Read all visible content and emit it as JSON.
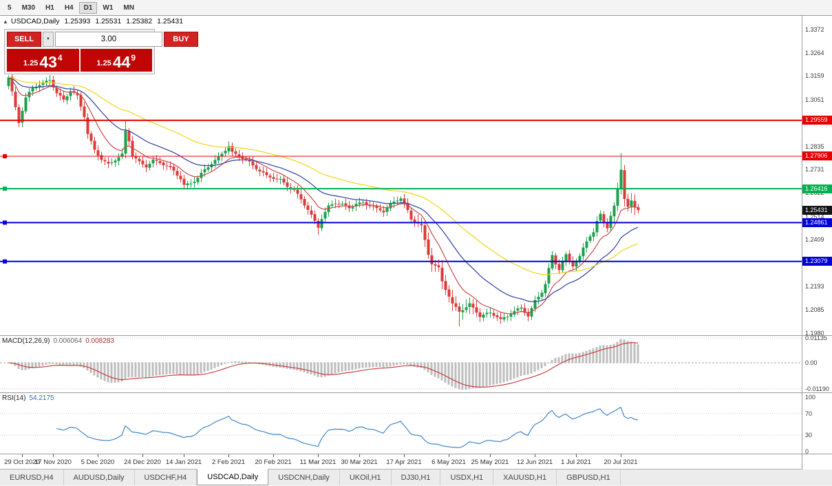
{
  "toolbar": {
    "periods": [
      {
        "label": "5",
        "active": false
      },
      {
        "label": "M30",
        "active": false
      },
      {
        "label": "H1",
        "active": false
      },
      {
        "label": "H4",
        "active": false
      },
      {
        "label": "D1",
        "active": true
      },
      {
        "label": "W1",
        "active": false
      },
      {
        "label": "MN",
        "active": false
      }
    ]
  },
  "chart": {
    "header": {
      "collapse_icon": "▲",
      "title": "USDCAD,Daily",
      "open": "1.25393",
      "high": "1.25531",
      "low": "1.25382",
      "close": "1.25431"
    },
    "trade_panel": {
      "sell_label": "SELL",
      "buy_label": "BUY",
      "volume": "3.00",
      "dropdown_icon": "▼",
      "sell_price": {
        "prefix": "1.25",
        "big": "43",
        "sup": "4"
      },
      "buy_price": {
        "prefix": "1.25",
        "big": "44",
        "sup": "9"
      }
    },
    "price_axis_ticks": [
      "1.3372",
      "1.3264",
      "1.3159",
      "1.3051",
      "1.2946",
      "1.2835",
      "1.2731",
      "1.2622",
      "1.2514",
      "1.2409",
      "1.2301",
      "1.2193",
      "1.2085",
      "1.1980"
    ],
    "hlines": [
      {
        "price": 1.29559,
        "label": "1.29559",
        "color": "#e60000",
        "width": 2,
        "marker": false
      },
      {
        "price": 1.27906,
        "label": "1.27906",
        "color": "#e60000",
        "width": 1,
        "marker": true
      },
      {
        "price": 1.26416,
        "label": "1.26416",
        "color": "#00b050",
        "width": 2,
        "marker": true
      },
      {
        "price": 1.24861,
        "label": "1.24861",
        "color": "#0000d8",
        "width": 2,
        "marker": true
      },
      {
        "price": 1.23079,
        "label": "1.23079",
        "color": "#0000d8",
        "width": 2,
        "marker": true
      }
    ],
    "current_price_badge": {
      "label": "1.25431",
      "price": 1.25431,
      "bg": "#141414"
    },
    "indicators": {
      "macd": {
        "name": "MACD(12,26,9)",
        "main_value": "0.006064",
        "signal_value": "0.008283",
        "ticks": [
          {
            "label": "0.01135",
            "value": 0.01135
          },
          {
            "label": "0.00",
            "value": 0
          },
          {
            "label": "-0.01190",
            "value": -0.0119
          }
        ]
      },
      "rsi": {
        "name": "RSI(14)",
        "value": "54.2175",
        "ticks": [
          {
            "label": "100",
            "value": 100
          },
          {
            "label": "70",
            "value": 70
          },
          {
            "label": "30",
            "value": 30
          },
          {
            "label": "0",
            "value": 0
          }
        ],
        "levels": [
          70,
          30
        ]
      }
    }
  },
  "chart_data": {
    "type": "candlestick",
    "symbol": "USDCAD",
    "timeframe": "Daily",
    "title": "USDCAD,Daily",
    "ohlc_header": {
      "open": 1.25393,
      "high": 1.25531,
      "low": 1.25382,
      "close": 1.25431
    },
    "bid": 1.25434,
    "ask": 1.25449,
    "bars": 184,
    "price_axis": {
      "min": 1.1969,
      "max": 1.34352
    },
    "x_labels": [
      {
        "label": "29 Oct 2020",
        "bar": 4
      },
      {
        "label": "17 Nov 2020",
        "bar": 13
      },
      {
        "label": "5 Dec 2020",
        "bar": 26
      },
      {
        "label": "24 Dec 2020",
        "bar": 39
      },
      {
        "label": "14 Jan 2021",
        "bar": 51
      },
      {
        "label": "2 Feb 2021",
        "bar": 64
      },
      {
        "label": "20 Feb 2021",
        "bar": 77
      },
      {
        "label": "11 Mar 2021",
        "bar": 90
      },
      {
        "label": "30 Mar 2021",
        "bar": 102
      },
      {
        "label": "17 Apr 2021",
        "bar": 115
      },
      {
        "label": "6 May 2021",
        "bar": 128
      },
      {
        "label": "25 May 2021",
        "bar": 140
      },
      {
        "label": "12 Jun 2021",
        "bar": 153
      },
      {
        "label": "1 Jul 2021",
        "bar": 165
      },
      {
        "label": "20 Jul 2021",
        "bar": 178
      }
    ],
    "close_anchors": [
      [
        0,
        1.315
      ],
      [
        2,
        1.301
      ],
      [
        3,
        1.2945
      ],
      [
        5,
        1.306
      ],
      [
        7,
        1.311
      ],
      [
        10,
        1.3125
      ],
      [
        12,
        1.314
      ],
      [
        14,
        1.3075
      ],
      [
        16,
        1.305
      ],
      [
        18,
        1.3095
      ],
      [
        20,
        1.307
      ],
      [
        22,
        1.2975
      ],
      [
        23,
        1.289
      ],
      [
        25,
        1.2815
      ],
      [
        27,
        1.2775
      ],
      [
        29,
        1.2755
      ],
      [
        31,
        1.278
      ],
      [
        33,
        1.28
      ],
      [
        34,
        1.2905
      ],
      [
        35,
        1.286
      ],
      [
        36,
        1.279
      ],
      [
        38,
        1.276
      ],
      [
        40,
        1.2745
      ],
      [
        42,
        1.2775
      ],
      [
        44,
        1.2765
      ],
      [
        46,
        1.2745
      ],
      [
        48,
        1.272
      ],
      [
        50,
        1.2685
      ],
      [
        51,
        1.2655
      ],
      [
        53,
        1.267
      ],
      [
        55,
        1.2695
      ],
      [
        57,
        1.273
      ],
      [
        59,
        1.2755
      ],
      [
        61,
        1.278
      ],
      [
        63,
        1.282
      ],
      [
        64,
        1.284
      ],
      [
        65,
        1.281
      ],
      [
        67,
        1.2795
      ],
      [
        69,
        1.2775
      ],
      [
        71,
        1.2745
      ],
      [
        73,
        1.272
      ],
      [
        75,
        1.27
      ],
      [
        77,
        1.2695
      ],
      [
        79,
        1.2685
      ],
      [
        81,
        1.2655
      ],
      [
        83,
        1.263
      ],
      [
        85,
        1.259
      ],
      [
        87,
        1.2545
      ],
      [
        89,
        1.2495
      ],
      [
        90,
        1.247
      ],
      [
        91,
        1.251
      ],
      [
        93,
        1.256
      ],
      [
        95,
        1.2575
      ],
      [
        97,
        1.2565
      ],
      [
        99,
        1.2555
      ],
      [
        101,
        1.2575
      ],
      [
        103,
        1.258
      ],
      [
        105,
        1.2565
      ],
      [
        107,
        1.2545
      ],
      [
        109,
        1.2535
      ],
      [
        111,
        1.257
      ],
      [
        113,
        1.2595
      ],
      [
        114,
        1.2605
      ],
      [
        115,
        1.2575
      ],
      [
        116,
        1.254
      ],
      [
        117,
        1.25
      ],
      [
        119,
        1.248
      ],
      [
        120,
        1.2465
      ],
      [
        121,
        1.24
      ],
      [
        122,
        1.234
      ],
      [
        123,
        1.23
      ],
      [
        125,
        1.228
      ],
      [
        126,
        1.222
      ],
      [
        128,
        1.215
      ],
      [
        129,
        1.211
      ],
      [
        131,
        1.2075
      ],
      [
        133,
        1.2095
      ],
      [
        134,
        1.211
      ],
      [
        136,
        1.208
      ],
      [
        137,
        1.206
      ],
      [
        139,
        1.207
      ],
      [
        140,
        1.2075
      ],
      [
        142,
        1.205
      ],
      [
        143,
        1.2035
      ],
      [
        145,
        1.2055
      ],
      [
        146,
        1.207
      ],
      [
        148,
        1.209
      ],
      [
        149,
        1.21
      ],
      [
        150,
        1.208
      ],
      [
        151,
        1.206
      ],
      [
        152,
        1.209
      ],
      [
        153,
        1.2125
      ],
      [
        155,
        1.2165
      ],
      [
        156,
        1.22
      ],
      [
        157,
        1.227
      ],
      [
        158,
        1.2335
      ],
      [
        159,
        1.23
      ],
      [
        160,
        1.2275
      ],
      [
        161,
        1.231
      ],
      [
        162,
        1.234
      ],
      [
        163,
        1.2315
      ],
      [
        164,
        1.229
      ],
      [
        165,
        1.2305
      ],
      [
        166,
        1.2325
      ],
      [
        167,
        1.2365
      ],
      [
        168,
        1.24
      ],
      [
        169,
        1.2425
      ],
      [
        170,
        1.244
      ],
      [
        171,
        1.249
      ],
      [
        172,
        1.253
      ],
      [
        173,
        1.2495
      ],
      [
        174,
        1.2465
      ],
      [
        175,
        1.2515
      ],
      [
        176,
        1.256
      ],
      [
        177,
        1.264
      ],
      [
        178,
        1.273
      ],
      [
        179,
        1.259
      ],
      [
        180,
        1.255
      ],
      [
        181,
        1.2585
      ],
      [
        182,
        1.256
      ],
      [
        183,
        1.25431
      ]
    ],
    "key_highs": [
      [
        1,
        1.32
      ],
      [
        34,
        1.2952
      ],
      [
        178,
        1.2805
      ]
    ],
    "key_lows": [
      [
        90,
        1.243
      ],
      [
        131,
        1.201
      ],
      [
        143,
        1.2025
      ]
    ],
    "moving_averages": [
      {
        "type": "ema",
        "period": 10,
        "color": "#c94848"
      },
      {
        "type": "ema",
        "period": 25,
        "color": "#2c3e9e"
      },
      {
        "type": "ema",
        "period": 55,
        "color": "#f2d410"
      }
    ],
    "horizontal_levels": [
      1.29559,
      1.27906,
      1.26416,
      1.24861,
      1.23079
    ],
    "indicators": [
      {
        "name": "MACD",
        "params": [
          12,
          26,
          9
        ],
        "display_values": [
          0.006064,
          0.008283
        ],
        "axis_ticks": [
          0.01135,
          0,
          -0.0119
        ]
      },
      {
        "name": "RSI",
        "params": [
          14
        ],
        "display_value": 54.2175,
        "axis_ticks": [
          100,
          70,
          30,
          0
        ],
        "levels": [
          70,
          30
        ]
      }
    ]
  },
  "tabs": [
    {
      "label": "EURUSD,H4",
      "active": false
    },
    {
      "label": "AUDUSD,Daily",
      "active": false
    },
    {
      "label": "USDCHF,H4",
      "active": false
    },
    {
      "label": "USDCAD,Daily",
      "active": true
    },
    {
      "label": "USDCNH,Daily",
      "active": false
    },
    {
      "label": "UKOil,H1",
      "active": false
    },
    {
      "label": "DJ30,H1",
      "active": false
    },
    {
      "label": "USDX,H1",
      "active": false
    },
    {
      "label": "XAUUSD,H1",
      "active": false
    },
    {
      "label": "GBPUSD,H1",
      "active": false
    }
  ]
}
